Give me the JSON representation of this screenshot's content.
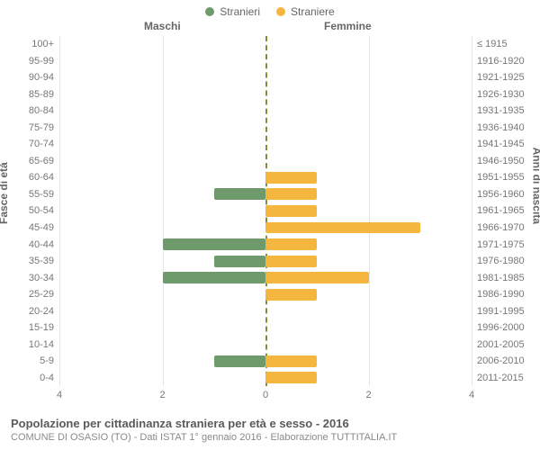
{
  "legend": {
    "male": {
      "label": "Stranieri",
      "color": "#6f9b6c"
    },
    "female": {
      "label": "Straniere",
      "color": "#f4b63f"
    }
  },
  "headers": {
    "left": "Maschi",
    "right": "Femmine"
  },
  "y_axis": {
    "left_title": "Fasce di età",
    "right_title": "Anni di nascita"
  },
  "x_axis": {
    "max": 4,
    "ticks": [
      4,
      2,
      0,
      2,
      4
    ],
    "tick_positions_pct": [
      0,
      25,
      50,
      75,
      100
    ]
  },
  "style": {
    "background": "#ffffff",
    "grid_color": "#e6e6e6",
    "center_line_color": "#8a8a3a",
    "tick_font_size": 11,
    "tick_color": "#777777",
    "label_font_size": 11,
    "label_color": "#777777",
    "bar_border_radius": 2,
    "grid_positions_pct": [
      0,
      25,
      75,
      100
    ]
  },
  "rows": [
    {
      "age": "100+",
      "birth": "≤ 1915",
      "m": 0,
      "f": 0
    },
    {
      "age": "95-99",
      "birth": "1916-1920",
      "m": 0,
      "f": 0
    },
    {
      "age": "90-94",
      "birth": "1921-1925",
      "m": 0,
      "f": 0
    },
    {
      "age": "85-89",
      "birth": "1926-1930",
      "m": 0,
      "f": 0
    },
    {
      "age": "80-84",
      "birth": "1931-1935",
      "m": 0,
      "f": 0
    },
    {
      "age": "75-79",
      "birth": "1936-1940",
      "m": 0,
      "f": 0
    },
    {
      "age": "70-74",
      "birth": "1941-1945",
      "m": 0,
      "f": 0
    },
    {
      "age": "65-69",
      "birth": "1946-1950",
      "m": 0,
      "f": 0
    },
    {
      "age": "60-64",
      "birth": "1951-1955",
      "m": 0,
      "f": 1
    },
    {
      "age": "55-59",
      "birth": "1956-1960",
      "m": 1,
      "f": 1
    },
    {
      "age": "50-54",
      "birth": "1961-1965",
      "m": 0,
      "f": 1
    },
    {
      "age": "45-49",
      "birth": "1966-1970",
      "m": 0,
      "f": 3
    },
    {
      "age": "40-44",
      "birth": "1971-1975",
      "m": 2,
      "f": 1
    },
    {
      "age": "35-39",
      "birth": "1976-1980",
      "m": 1,
      "f": 1
    },
    {
      "age": "30-34",
      "birth": "1981-1985",
      "m": 2,
      "f": 2
    },
    {
      "age": "25-29",
      "birth": "1986-1990",
      "m": 0,
      "f": 1
    },
    {
      "age": "20-24",
      "birth": "1991-1995",
      "m": 0,
      "f": 0
    },
    {
      "age": "15-19",
      "birth": "1996-2000",
      "m": 0,
      "f": 0
    },
    {
      "age": "10-14",
      "birth": "2001-2005",
      "m": 0,
      "f": 0
    },
    {
      "age": "5-9",
      "birth": "2006-2010",
      "m": 1,
      "f": 1
    },
    {
      "age": "0-4",
      "birth": "2011-2015",
      "m": 0,
      "f": 1
    }
  ],
  "footer": {
    "title": "Popolazione per cittadinanza straniera per età e sesso - 2016",
    "subtitle": "COMUNE DI OSASIO (TO) - Dati ISTAT 1° gennaio 2016 - Elaborazione TUTTITALIA.IT"
  }
}
